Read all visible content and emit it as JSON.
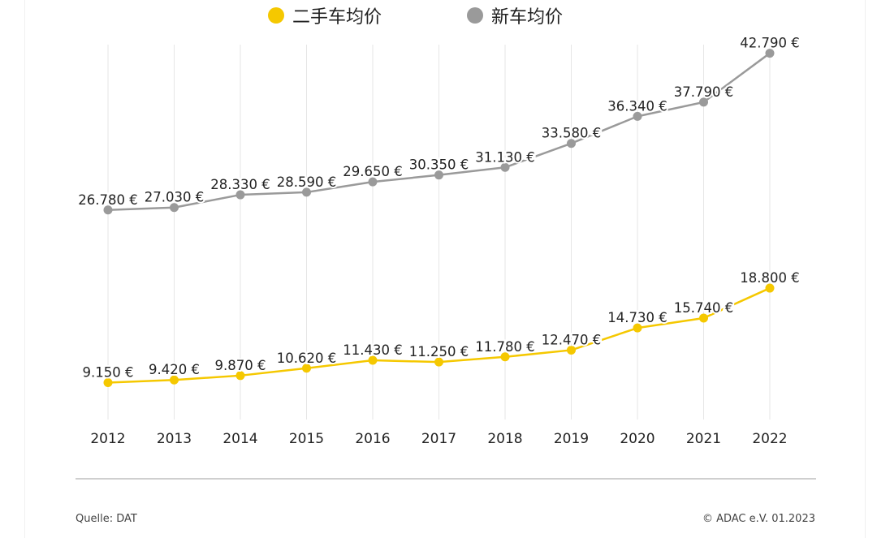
{
  "legend": {
    "items": [
      {
        "label": "二手车均价",
        "color": "#f5c800"
      },
      {
        "label": "新车均价",
        "color": "#9a9a9a"
      }
    ]
  },
  "chart_data": {
    "type": "line",
    "categories": [
      "2012",
      "2013",
      "2014",
      "2015",
      "2016",
      "2017",
      "2018",
      "2019",
      "2020",
      "2021",
      "2022"
    ],
    "series": [
      {
        "name": "新车均价",
        "color": "#9a9a9a",
        "values": [
          26780,
          27030,
          28330,
          28590,
          29650,
          30350,
          31130,
          33580,
          36340,
          37790,
          42790
        ],
        "labels": [
          "26.780 €",
          "27.030 €",
          "28.330 €",
          "28.590 €",
          "29.650 €",
          "30.350 €",
          "31.130 €",
          "33.580 €",
          "36.340 €",
          "37.790 €",
          "42.790 €"
        ]
      },
      {
        "name": "二手车均价",
        "color": "#f5c800",
        "values": [
          9150,
          9420,
          9870,
          10620,
          11430,
          11250,
          11780,
          12470,
          14730,
          15740,
          18800
        ],
        "labels": [
          "9.150 €",
          "9.420 €",
          "9.870 €",
          "10.620 €",
          "11.430 €",
          "11.250 €",
          "11.780 €",
          "12.470 €",
          "14.730 €",
          "15.740 €",
          "18.800 €"
        ]
      }
    ],
    "grid": "vertical"
  },
  "footer": {
    "source": "Quelle: DAT",
    "copyright": "© ADAC e.V. 01.2023"
  }
}
